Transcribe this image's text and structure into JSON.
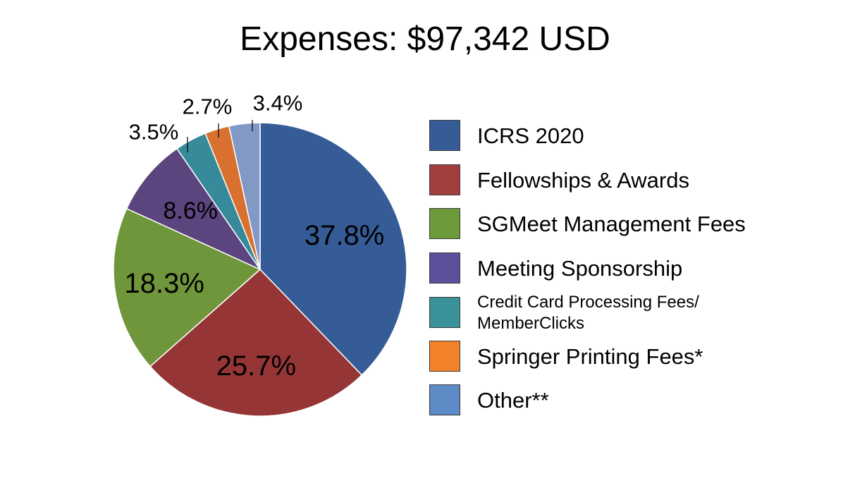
{
  "chart_data": {
    "type": "pie",
    "title": "Expenses: $97,342 USD",
    "categories": [
      "ICRS 2020",
      "Fellowships & Awards",
      "SGMeet Management Fees",
      "Meeting Sponsorship",
      "Credit Card Processing Fees/\nMemberClicks",
      "Springer Printing Fees*",
      "Other**"
    ],
    "values": [
      37.8,
      25.7,
      18.3,
      8.6,
      3.5,
      2.7,
      3.4
    ],
    "labels": [
      "37.8%",
      "25.7%",
      "18.3%",
      "8.6%",
      "3.5%",
      "2.7%",
      "3.4%"
    ],
    "unit": "%",
    "colors": [
      "#355c96",
      "#953535",
      "#6f963a",
      "#5c457f",
      "#368a9a",
      "#d8712f",
      "#8299c6"
    ],
    "legend_colors": [
      "#355c96",
      "#a13f3f",
      "#6d9b3b",
      "#5e4f9c",
      "#3a9199",
      "#f28229",
      "#5d8bc5"
    ],
    "legend_position": "right",
    "start_angle": "12 o'clock",
    "direction": "clockwise"
  }
}
